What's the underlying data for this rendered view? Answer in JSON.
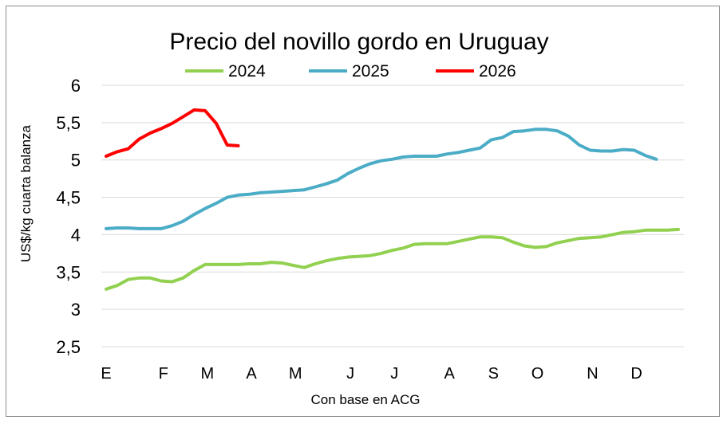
{
  "chart_data": {
    "type": "line",
    "title": "Precio del novillo gordo en Uruguay",
    "xlabel": "Con base en ACG",
    "ylabel": "US$/kg cuarta balanza",
    "ylim": [
      2.5,
      6
    ],
    "yticks": [
      2.5,
      3,
      3.5,
      4,
      4.5,
      5,
      5.5,
      6
    ],
    "ytick_labels": [
      "2,5",
      "3",
      "3,5",
      "4",
      "4,5",
      "5",
      "5,5",
      "6"
    ],
    "xlim": [
      1,
      53
    ],
    "month_labels": [
      "E",
      "F",
      "M",
      "A",
      "M",
      "J",
      "J",
      "A",
      "S",
      "O",
      "N",
      "D"
    ],
    "month_positions": [
      1,
      6.2,
      10.2,
      14.2,
      18.2,
      23.2,
      27.2,
      32.2,
      36.2,
      40.2,
      45.2,
      49.2
    ],
    "grid": true,
    "legend": "top",
    "series": [
      {
        "name": "2024",
        "color": "#92d050",
        "x": [
          1,
          2,
          3,
          4,
          5,
          6,
          7,
          8,
          9,
          10,
          11,
          12,
          13,
          14,
          15,
          16,
          17,
          18,
          19,
          20,
          21,
          22,
          23,
          24,
          25,
          26,
          27,
          28,
          29,
          30,
          31,
          32,
          33,
          34,
          35,
          36,
          37,
          38,
          39,
          40,
          41,
          42,
          43,
          44,
          45,
          46,
          47,
          48,
          49,
          50,
          51,
          52,
          53
        ],
        "values": [
          3.27,
          3.32,
          3.4,
          3.42,
          3.42,
          3.38,
          3.37,
          3.42,
          3.52,
          3.6,
          3.6,
          3.6,
          3.6,
          3.61,
          3.61,
          3.63,
          3.62,
          3.59,
          3.56,
          3.61,
          3.65,
          3.68,
          3.7,
          3.71,
          3.72,
          3.75,
          3.79,
          3.82,
          3.87,
          3.88,
          3.88,
          3.88,
          3.91,
          3.94,
          3.97,
          3.97,
          3.96,
          3.9,
          3.85,
          3.83,
          3.84,
          3.89,
          3.92,
          3.95,
          3.96,
          3.97,
          4.0,
          4.03,
          4.04,
          4.06,
          4.06,
          4.06,
          4.07
        ]
      },
      {
        "name": "2025",
        "color": "#4bacc6",
        "x": [
          1,
          2,
          3,
          4,
          5,
          6,
          7,
          8,
          9,
          10,
          11,
          12,
          13,
          14,
          15,
          16,
          17,
          18,
          19,
          20,
          21,
          22,
          23,
          24,
          25,
          26,
          27,
          28,
          29,
          30,
          31,
          32,
          33,
          34,
          35,
          36,
          37,
          38,
          39,
          40,
          41,
          42,
          43,
          44,
          45,
          46,
          47,
          48,
          49,
          50,
          51
        ],
        "values": [
          4.08,
          4.09,
          4.09,
          4.08,
          4.08,
          4.08,
          4.12,
          4.18,
          4.27,
          4.35,
          4.42,
          4.5,
          4.53,
          4.54,
          4.56,
          4.57,
          4.58,
          4.59,
          4.6,
          4.64,
          4.68,
          4.73,
          4.82,
          4.89,
          4.95,
          4.99,
          5.01,
          5.04,
          5.05,
          5.05,
          5.05,
          5.08,
          5.1,
          5.13,
          5.16,
          5.27,
          5.3,
          5.38,
          5.39,
          5.41,
          5.41,
          5.39,
          5.32,
          5.2,
          5.13,
          5.12,
          5.12,
          5.14,
          5.13,
          5.06,
          5.01
        ]
      },
      {
        "name": "2026",
        "color": "#ff0000",
        "x": [
          1,
          2,
          3,
          4,
          5,
          6,
          7,
          8,
          9,
          10,
          11,
          12,
          13
        ],
        "values": [
          5.05,
          5.11,
          5.15,
          5.28,
          5.36,
          5.42,
          5.49,
          5.58,
          5.67,
          5.66,
          5.49,
          5.2,
          5.19
        ]
      }
    ]
  }
}
